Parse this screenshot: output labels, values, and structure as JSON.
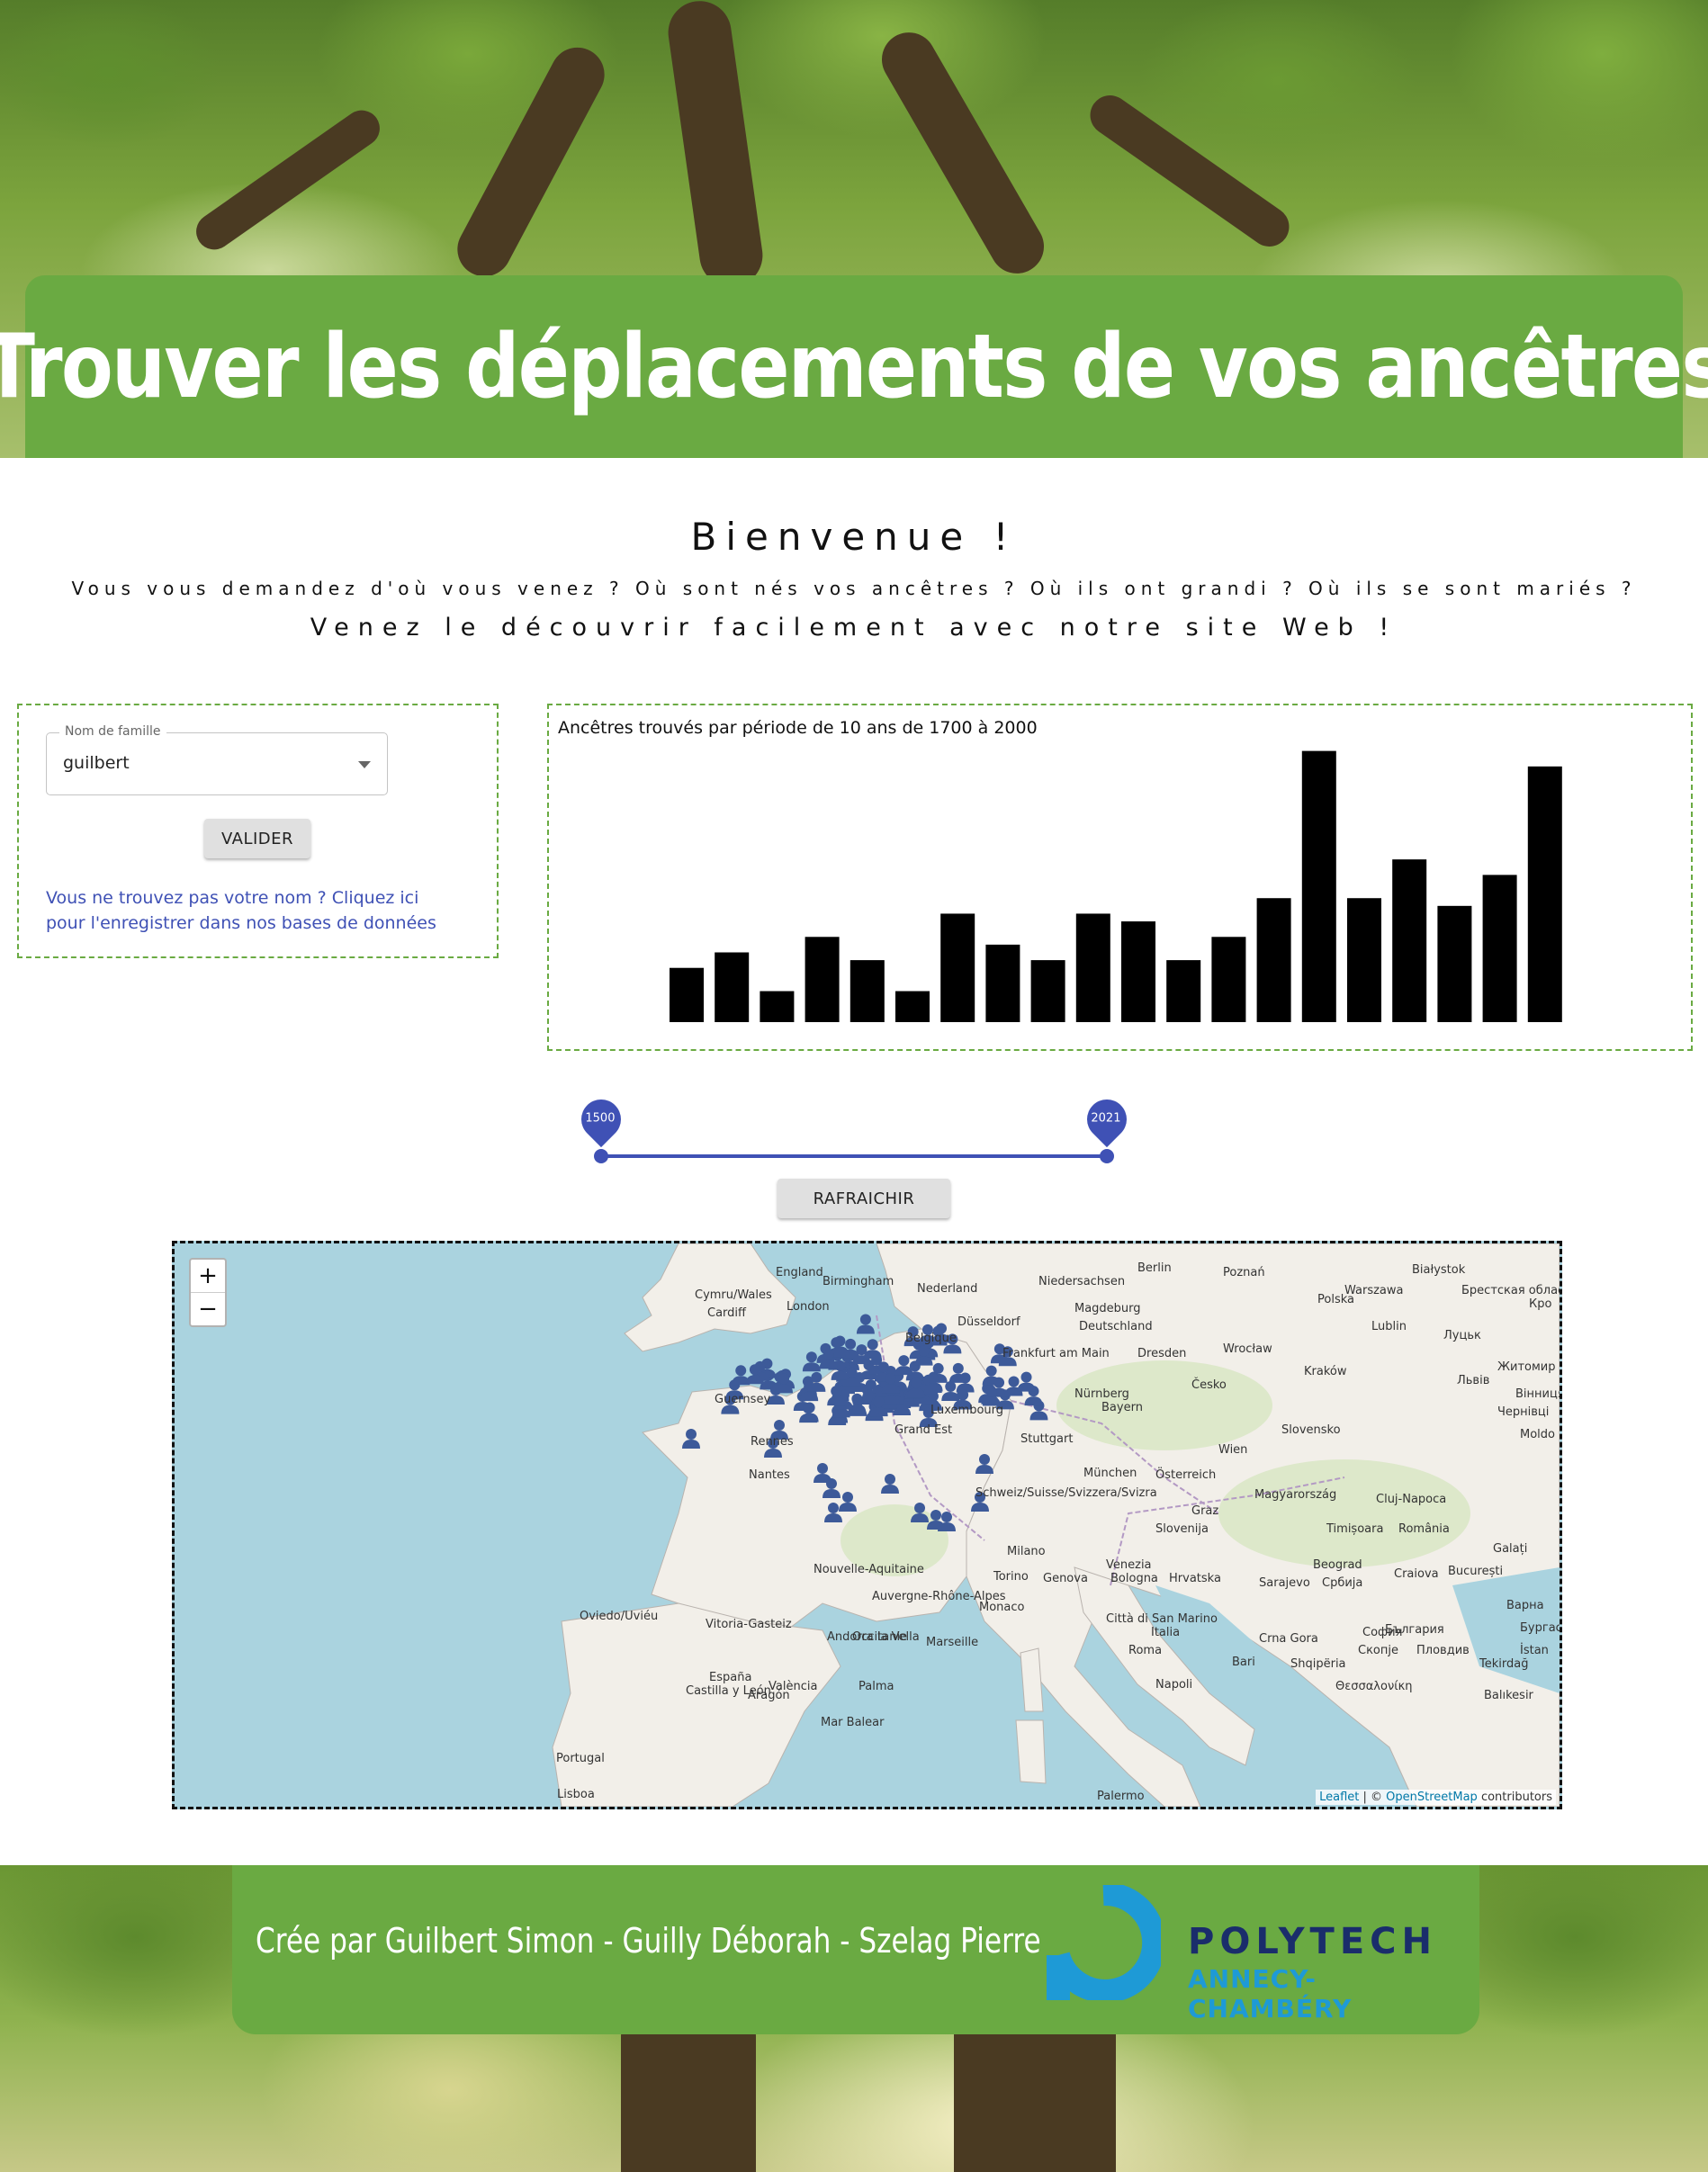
{
  "header": {
    "title": "Trouver les déplacements de vos ancêtres"
  },
  "welcome": {
    "title": "Bienvenue !",
    "line1": "Vous vous demandez d'où vous venez ? Où sont nés vos ancêtres ? Où ils ont grandi ? Où ils se sont mariés ?",
    "line2": "Venez le découvrir facilement avec notre site Web !"
  },
  "search": {
    "label": "Nom de famille",
    "value": "guilbert",
    "submit_label": "VALIDER",
    "register_link": "Vous ne trouvez pas votre nom ? Cliquez ici pour l'enregistrer dans nos bases de données"
  },
  "chart_data": {
    "type": "bar",
    "title": "Ancêtres trouvés par période de 10 ans de 1700 à 2000",
    "values": [
      7,
      9,
      4,
      11,
      8,
      4,
      14,
      10,
      8,
      14,
      13,
      8,
      11,
      16,
      35,
      16,
      21,
      15,
      19,
      33
    ],
    "ylim": [
      0,
      36
    ],
    "color": "#000000"
  },
  "slider": {
    "min_label": "1500",
    "max_label": "2021",
    "min": 1500,
    "max": 2021,
    "value_low": 1500,
    "value_high": 2021,
    "color": "#3f51b5"
  },
  "refresh_label": "RAFRAICHIR",
  "map": {
    "zoom_in": "+",
    "zoom_out": "−",
    "attribution_leaflet": "Leaflet",
    "attribution_sep": " | © ",
    "attribution_osm": "OpenStreetMap",
    "attribution_tail": " contributors",
    "marker_color": "#3d5a99",
    "cities": [
      "Birmingham",
      "Cardiff",
      "London",
      "Nederland",
      "Düsseldorf",
      "Berlin",
      "Poznań",
      "Polska",
      "Warszawa",
      "Magdeburg",
      "Deutschland",
      "Dresden",
      "Wrocław",
      "Lublin",
      "Frankfurt am Main",
      "Česko",
      "Kraków",
      "Nürnberg",
      "Luxembourg",
      "Stuttgart",
      "München",
      "Österreich",
      "Slovensko",
      "Wien",
      "Magyarország",
      "Cluj-Napoca",
      "Schweiz/Suisse/Svizzera/Svizra",
      "Graz",
      "Slovenija",
      "Timișoara",
      "România",
      "Milano",
      "Venezia",
      "Torino",
      "Monaco",
      "Genova",
      "Bologna",
      "Hrvatska",
      "Sarajevo",
      "Србија",
      "Beograd",
      "Craiova",
      "București",
      "Rennes",
      "Nantes",
      "Marseille",
      "Città di San Marino",
      "Italia",
      "Roma",
      "Napoli",
      "Bari",
      "Crna Gora",
      "Shqipëria",
      "Oviedo/Uviéu",
      "Vitoria-Gasteiz",
      "Andorra la Vella",
      "España",
      "València",
      "Palma",
      "Portugal",
      "Lisboa",
      "Palermo",
      "Guernsey",
      "Belgique",
      "България",
      "София",
      "Скопје",
      "Пловдив",
      "Θεσσαλονίκη",
      "Galați",
      "Варна",
      "Бургас",
      "Tekirdağ",
      "İstan",
      "Balıkesir",
      "Białystok",
      "Львів",
      "Житомир",
      "Чернівці",
      "Луцьк",
      "Вінниця",
      "Moldo",
      "Кро",
      "England",
      "Cymru/Wales",
      "Niedersachsen",
      "Bayern",
      "Grand Est",
      "Nouvelle-Aquitaine",
      "Auvergne-Rhône-Alpes",
      "Occitanie",
      "Castilla y León",
      "Aragón",
      "Mar Balear",
      "Брестская область"
    ]
  },
  "footer": {
    "credits": "Crée par Guilbert Simon - Guilly Déborah - Szelag Pierre",
    "logo_name": "POLYTECH",
    "logo_sub": "ANNECY-CHAMBÉRY"
  }
}
